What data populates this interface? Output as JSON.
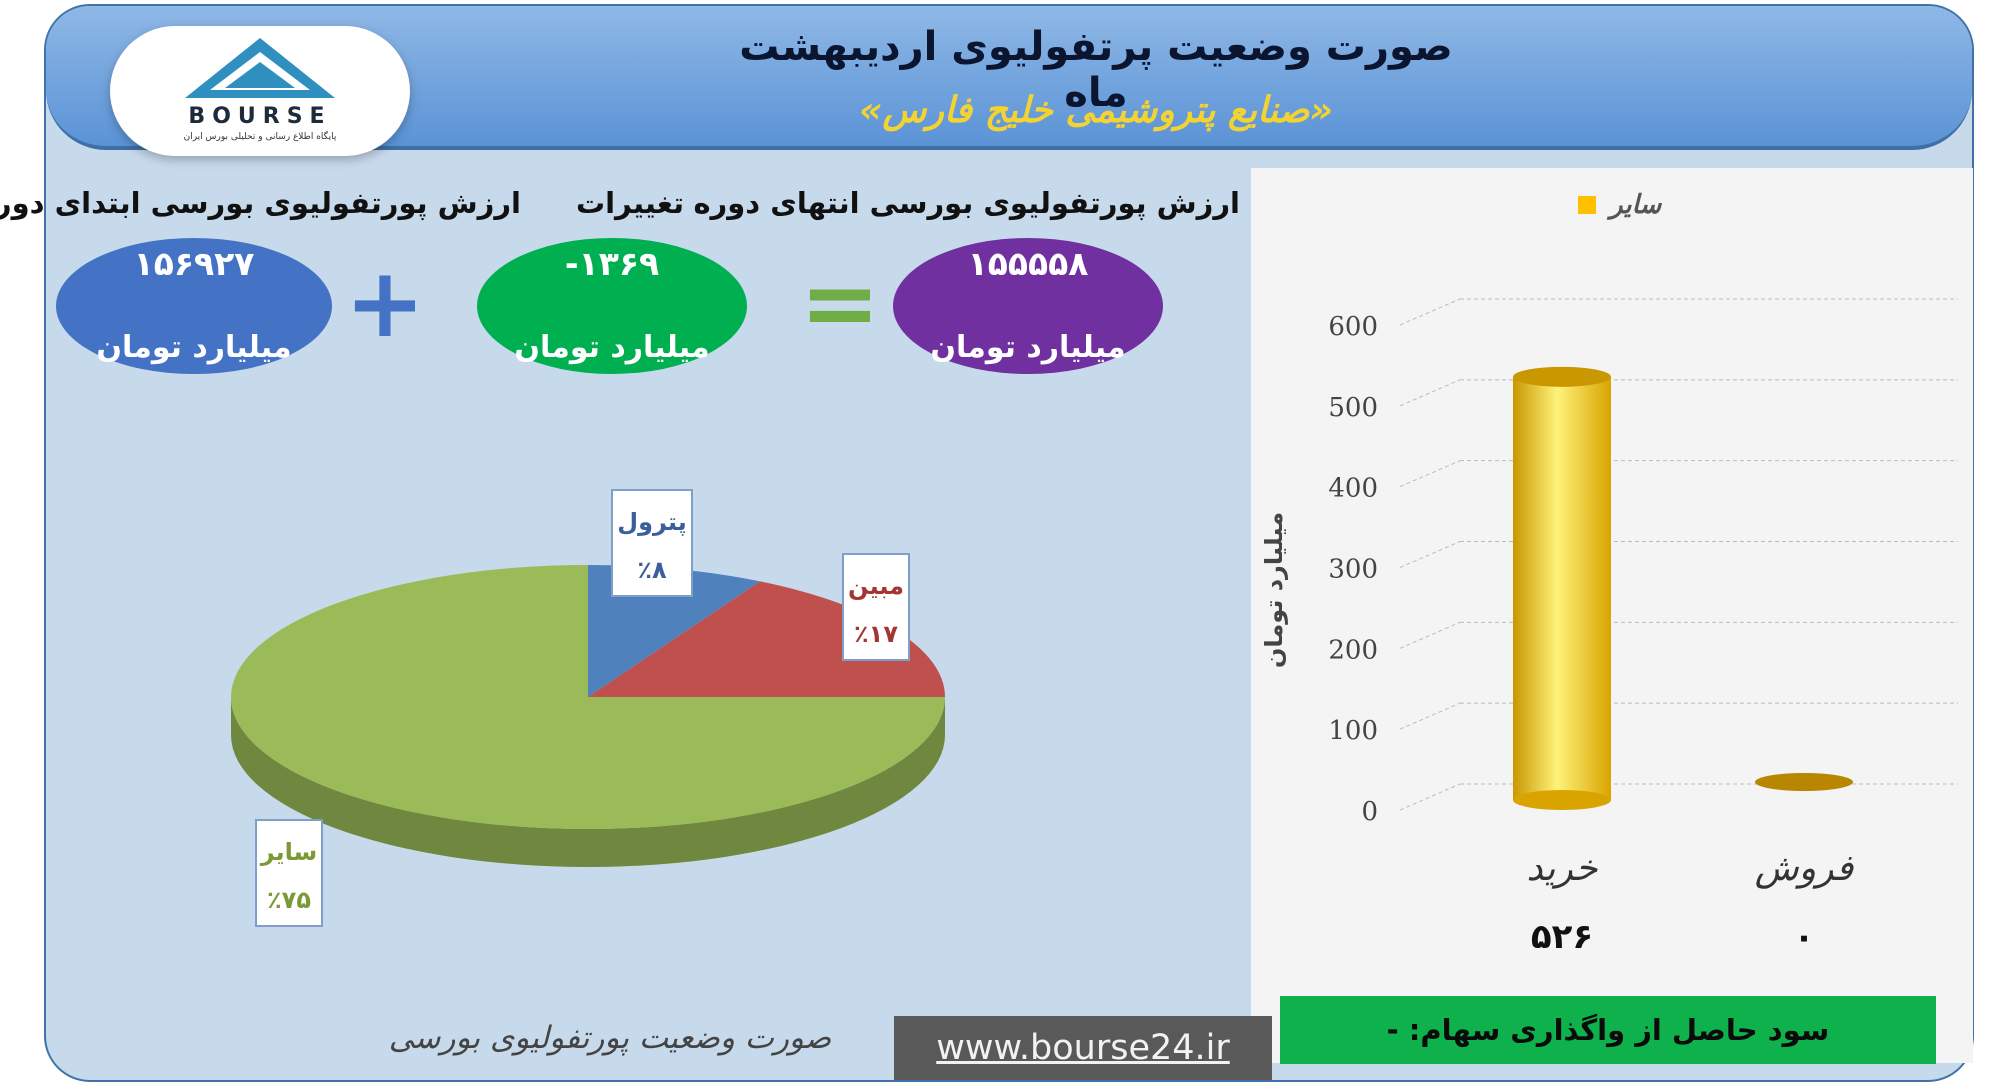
{
  "header": {
    "title": "صورت وضعیت پرتفولیوی اردیبهشت ماه",
    "subtitle": "«صنایع پتروشیمی خلیج فارس»",
    "logo_text": "BOURSE",
    "logo_tagline": "پایگاه اطلاع رسانی و تحلیلی بورس ایران"
  },
  "summary": {
    "start": {
      "label": "ارزش پورتفولیوی بورسی ابتدای دوره",
      "value": "۱۵۶۹۲۷",
      "unit": "میلیارد تومان"
    },
    "change": {
      "label": "تغییرات",
      "value": "-۱۳۶۹",
      "unit": "میلیارد تومان"
    },
    "end": {
      "label": "ارزش پورتفولیوی بورسی انتهای دوره",
      "value": "۱۵۵۵۵۸",
      "unit": "میلیارد تومان"
    },
    "plus_sign": "+",
    "equals_sign": "=",
    "colors": {
      "start": "#4472c4",
      "change": "#00b050",
      "end": "#7030a0",
      "plus": "#4472c4",
      "equals": "#70ad47"
    }
  },
  "chart_data": [
    {
      "type": "pie",
      "title": "",
      "slices": [
        {
          "label": "پترول",
          "percent_label": "٪۸",
          "value": 8,
          "color": "#4f81bd",
          "label_color": "#3a5f9a"
        },
        {
          "label": "مبین",
          "percent_label": "٪۱۷",
          "value": 17,
          "color": "#c0504d",
          "label_color": "#a33633"
        },
        {
          "label": "سایر",
          "percent_label": "٪۷۵",
          "value": 75,
          "color": "#9bbb59",
          "label_color": "#7a9a35"
        }
      ]
    },
    {
      "type": "bar",
      "title": "",
      "legend": {
        "name": "سایر",
        "position": "top",
        "color": "#ffc000"
      },
      "ylabel": "میلیارد تومان",
      "ylim": [
        0,
        600
      ],
      "yticks": [
        "0",
        "100",
        "200",
        "300",
        "400",
        "500",
        "600"
      ],
      "categories": [
        "خرید",
        "فروش"
      ],
      "values": [
        526,
        0
      ],
      "value_labels": [
        "۵۲۶",
        "۰"
      ],
      "colors": {
        "bar": "#ffc000",
        "bar_dark": "#c99700",
        "grid": "#bbbbbb"
      }
    }
  ],
  "footer": {
    "caption": "صورت وضعیت پورتفولیوی بورسی",
    "url": "www.bourse24.ir",
    "profit_note": "سود حاصل از واگذاری سهام: -"
  }
}
